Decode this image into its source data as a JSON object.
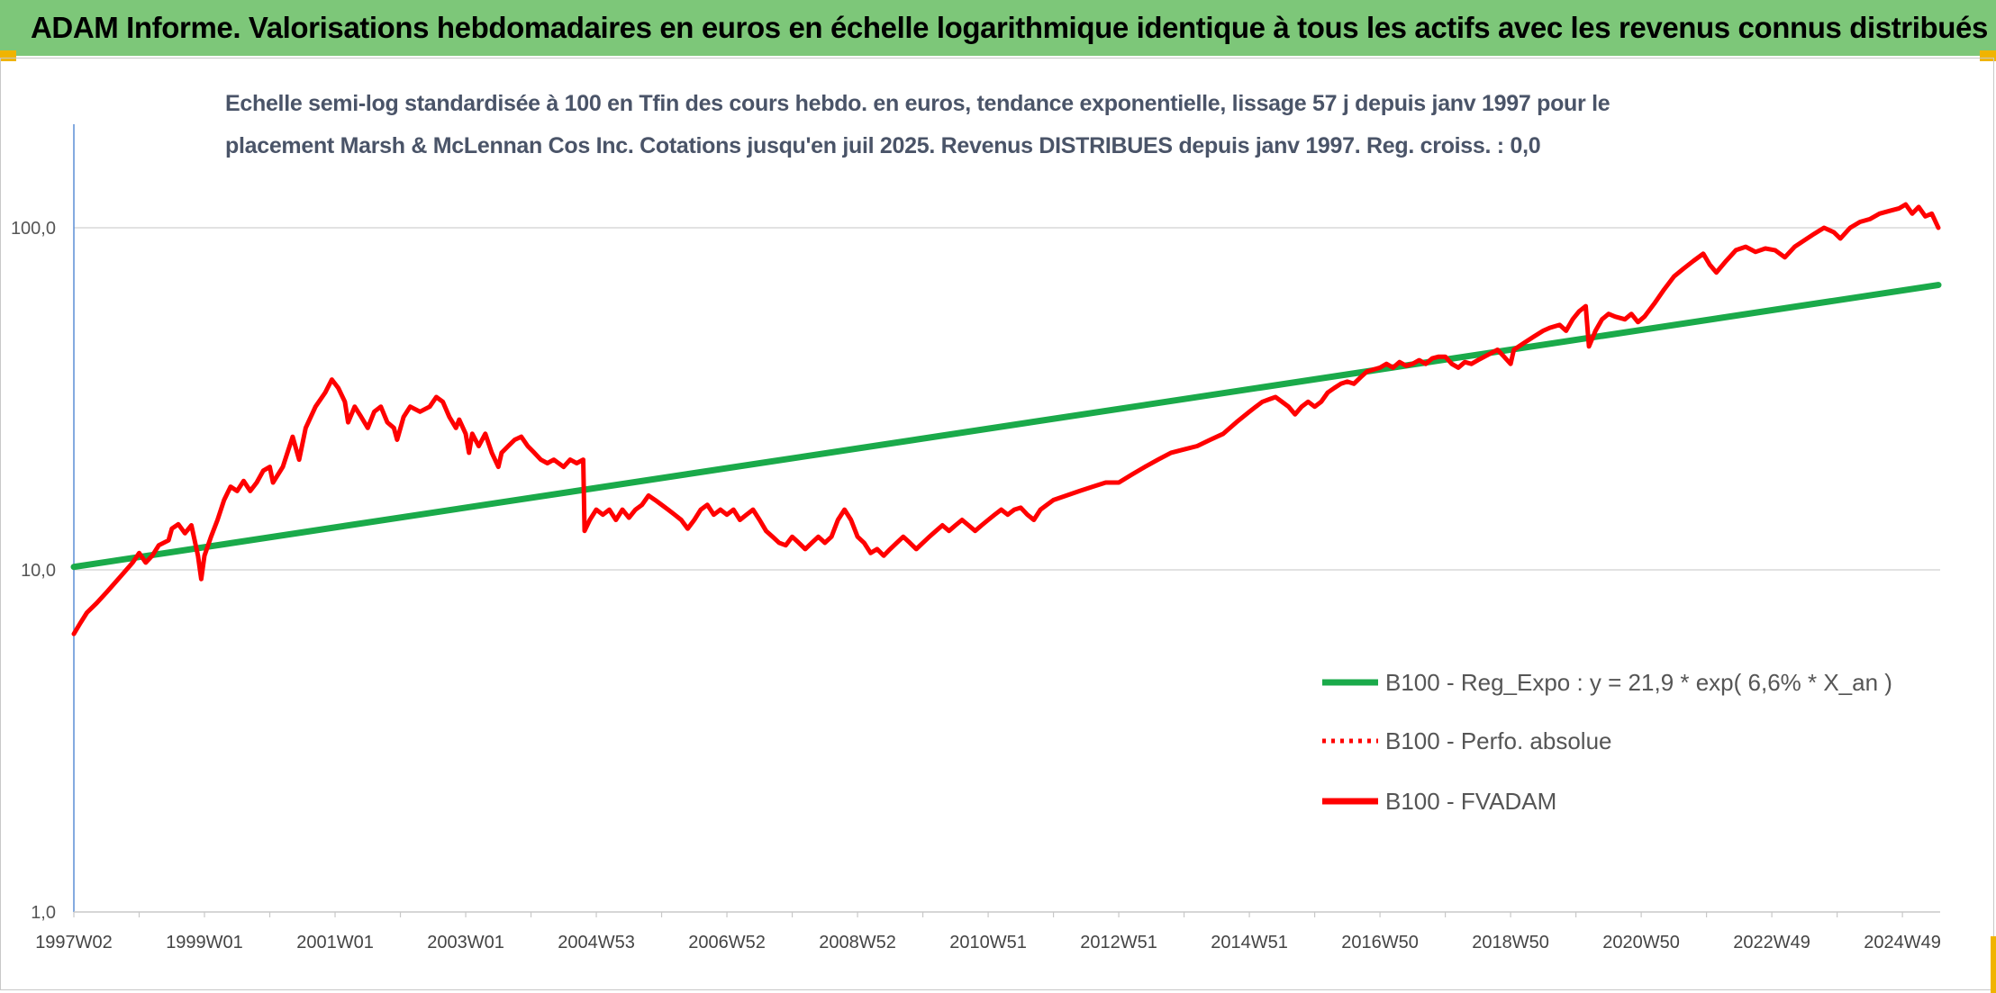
{
  "header": {
    "title": "ADAM Informe. Valorisations hebdomadaires en euros en échelle logarithmique identique à tous les actifs avec les revenus connus distribués"
  },
  "colors": {
    "header_bg": "#7dc779",
    "trend": "#1aaa4a",
    "fvadam": "#ff0000",
    "perfo": "#ff0000"
  },
  "chart_data": {
    "type": "line",
    "title": "Echelle semi-log standardisée à 100 en Tfin des cours hebdo. en euros, tendance exponentielle, lissage 57 j depuis janv 1997 pour le placement Marsh & McLennan Cos Inc. Cotations jusqu'en juil 2025. Revenus DISTRIBUES depuis janv 1997. Reg. croiss. : 0,0",
    "title_lines": [
      "Echelle semi-log standardisée à 100 en Tfin des cours hebdo. en euros, tendance exponentielle, lissage 57 j depuis janv 1997 pour le",
      "placement Marsh & McLennan Cos Inc. Cotations jusqu'en juil 2025. Revenus DISTRIBUES depuis janv 1997. Reg. croiss. : 0,0"
    ],
    "y_scale": "log",
    "ylim": [
      1,
      200
    ],
    "x_range": [
      1997.0,
      2025.55
    ],
    "y_ticks": [
      {
        "value": 1,
        "label": "1,0"
      },
      {
        "value": 10,
        "label": "10,0"
      },
      {
        "value": 100,
        "label": "100,0"
      }
    ],
    "x_ticks": [
      {
        "x": 1997.0,
        "label": "1997W02"
      },
      {
        "x": 1999.0,
        "label": "1999W01"
      },
      {
        "x": 2001.0,
        "label": "2001W01"
      },
      {
        "x": 2003.0,
        "label": "2003W01"
      },
      {
        "x": 2005.0,
        "label": "2004W53"
      },
      {
        "x": 2007.0,
        "label": "2006W52"
      },
      {
        "x": 2009.0,
        "label": "2008W52"
      },
      {
        "x": 2011.0,
        "label": "2010W51"
      },
      {
        "x": 2013.0,
        "label": "2012W51"
      },
      {
        "x": 2015.0,
        "label": "2014W51"
      },
      {
        "x": 2017.0,
        "label": "2016W50"
      },
      {
        "x": 2019.0,
        "label": "2018W50"
      },
      {
        "x": 2021.0,
        "label": "2020W50"
      },
      {
        "x": 2023.0,
        "label": "2022W49"
      },
      {
        "x": 2025.0,
        "label": "2024W49"
      }
    ],
    "grid": "horizontal",
    "legend_position": "right-middle",
    "series": [
      {
        "name": "B100 - Reg_Expo : y = 21,9 * exp( 6,6% *  X_an )",
        "style": "solid",
        "color": "#1aaa4a",
        "points": [
          [
            1997.0,
            10.2
          ],
          [
            2025.55,
            68.0
          ]
        ]
      },
      {
        "name": "B100 - Perfo. absolue",
        "style": "dotted",
        "color": "#ff0000",
        "points": []
      },
      {
        "name": "B100 - FVADAM",
        "style": "solid",
        "color": "#ff0000",
        "points": [
          [
            1997.0,
            6.5
          ],
          [
            1997.1,
            7.0
          ],
          [
            1997.2,
            7.5
          ],
          [
            1997.35,
            8.0
          ],
          [
            1997.5,
            8.6
          ],
          [
            1997.7,
            9.5
          ],
          [
            1997.9,
            10.5
          ],
          [
            1998.0,
            11.2
          ],
          [
            1998.1,
            10.5
          ],
          [
            1998.2,
            11.0
          ],
          [
            1998.3,
            11.8
          ],
          [
            1998.45,
            12.2
          ],
          [
            1998.5,
            13.2
          ],
          [
            1998.6,
            13.6
          ],
          [
            1998.7,
            12.8
          ],
          [
            1998.8,
            13.5
          ],
          [
            1998.9,
            11.0
          ],
          [
            1998.95,
            9.4
          ],
          [
            1999.0,
            11.0
          ],
          [
            1999.1,
            12.5
          ],
          [
            1999.2,
            14.0
          ],
          [
            1999.3,
            16.0
          ],
          [
            1999.4,
            17.5
          ],
          [
            1999.5,
            17.0
          ],
          [
            1999.6,
            18.2
          ],
          [
            1999.7,
            17.0
          ],
          [
            1999.8,
            18.0
          ],
          [
            1999.9,
            19.5
          ],
          [
            2000.0,
            20.0
          ],
          [
            2000.05,
            18.0
          ],
          [
            2000.2,
            20.0
          ],
          [
            2000.35,
            24.5
          ],
          [
            2000.45,
            21.0
          ],
          [
            2000.55,
            26.0
          ],
          [
            2000.7,
            30.0
          ],
          [
            2000.85,
            33.0
          ],
          [
            2000.95,
            36.0
          ],
          [
            2001.05,
            34.0
          ],
          [
            2001.15,
            31.0
          ],
          [
            2001.2,
            27.0
          ],
          [
            2001.3,
            30.0
          ],
          [
            2001.4,
            28.0
          ],
          [
            2001.5,
            26.0
          ],
          [
            2001.6,
            29.0
          ],
          [
            2001.7,
            30.0
          ],
          [
            2001.8,
            27.0
          ],
          [
            2001.9,
            26.0
          ],
          [
            2001.95,
            24.0
          ],
          [
            2002.05,
            28.0
          ],
          [
            2002.15,
            30.0
          ],
          [
            2002.3,
            29.0
          ],
          [
            2002.45,
            30.0
          ],
          [
            2002.55,
            32.0
          ],
          [
            2002.65,
            31.0
          ],
          [
            2002.75,
            28.0
          ],
          [
            2002.85,
            26.0
          ],
          [
            2002.9,
            27.5
          ],
          [
            2003.0,
            25.0
          ],
          [
            2003.05,
            22.0
          ],
          [
            2003.1,
            25.0
          ],
          [
            2003.2,
            23.0
          ],
          [
            2003.3,
            25.0
          ],
          [
            2003.4,
            22.0
          ],
          [
            2003.5,
            20.0
          ],
          [
            2003.55,
            22.0
          ],
          [
            2003.65,
            23.0
          ],
          [
            2003.75,
            24.0
          ],
          [
            2003.85,
            24.5
          ],
          [
            2003.95,
            23.0
          ],
          [
            2004.05,
            22.0
          ],
          [
            2004.15,
            21.0
          ],
          [
            2004.25,
            20.5
          ],
          [
            2004.35,
            21.0
          ],
          [
            2004.5,
            20.0
          ],
          [
            2004.6,
            21.0
          ],
          [
            2004.7,
            20.5
          ],
          [
            2004.8,
            21.0
          ],
          [
            2004.82,
            13.0
          ],
          [
            2004.9,
            14.0
          ],
          [
            2005.0,
            15.0
          ],
          [
            2005.1,
            14.5
          ],
          [
            2005.2,
            15.0
          ],
          [
            2005.3,
            14.0
          ],
          [
            2005.4,
            15.0
          ],
          [
            2005.5,
            14.2
          ],
          [
            2005.6,
            15.0
          ],
          [
            2005.7,
            15.5
          ],
          [
            2005.8,
            16.5
          ],
          [
            2005.9,
            16.0
          ],
          [
            2006.0,
            15.5
          ],
          [
            2006.1,
            15.0
          ],
          [
            2006.2,
            14.5
          ],
          [
            2006.3,
            14.0
          ],
          [
            2006.4,
            13.2
          ],
          [
            2006.5,
            14.0
          ],
          [
            2006.6,
            15.0
          ],
          [
            2006.7,
            15.5
          ],
          [
            2006.8,
            14.5
          ],
          [
            2006.9,
            15.0
          ],
          [
            2007.0,
            14.5
          ],
          [
            2007.1,
            15.0
          ],
          [
            2007.2,
            14.0
          ],
          [
            2007.3,
            14.5
          ],
          [
            2007.4,
            15.0
          ],
          [
            2007.5,
            14.0
          ],
          [
            2007.6,
            13.0
          ],
          [
            2007.7,
            12.5
          ],
          [
            2007.8,
            12.0
          ],
          [
            2007.9,
            11.8
          ],
          [
            2008.0,
            12.5
          ],
          [
            2008.1,
            12.0
          ],
          [
            2008.2,
            11.5
          ],
          [
            2008.3,
            12.0
          ],
          [
            2008.4,
            12.5
          ],
          [
            2008.5,
            12.0
          ],
          [
            2008.6,
            12.5
          ],
          [
            2008.7,
            14.0
          ],
          [
            2008.8,
            15.0
          ],
          [
            2008.9,
            14.0
          ],
          [
            2009.0,
            12.5
          ],
          [
            2009.1,
            12.0
          ],
          [
            2009.2,
            11.2
          ],
          [
            2009.3,
            11.5
          ],
          [
            2009.4,
            11.0
          ],
          [
            2009.5,
            11.5
          ],
          [
            2009.6,
            12.0
          ],
          [
            2009.7,
            12.5
          ],
          [
            2009.8,
            12.0
          ],
          [
            2009.9,
            11.5
          ],
          [
            2010.0,
            12.0
          ],
          [
            2010.1,
            12.5
          ],
          [
            2010.2,
            13.0
          ],
          [
            2010.3,
            13.5
          ],
          [
            2010.4,
            13.0
          ],
          [
            2010.5,
            13.5
          ],
          [
            2010.6,
            14.0
          ],
          [
            2010.7,
            13.5
          ],
          [
            2010.8,
            13.0
          ],
          [
            2010.9,
            13.5
          ],
          [
            2011.0,
            14.0
          ],
          [
            2011.1,
            14.5
          ],
          [
            2011.2,
            15.0
          ],
          [
            2011.3,
            14.5
          ],
          [
            2011.4,
            15.0
          ],
          [
            2011.5,
            15.2
          ],
          [
            2011.6,
            14.5
          ],
          [
            2011.7,
            14.0
          ],
          [
            2011.8,
            15.0
          ],
          [
            2011.9,
            15.5
          ],
          [
            2012.0,
            16.0
          ],
          [
            2012.2,
            16.5
          ],
          [
            2012.4,
            17.0
          ],
          [
            2012.6,
            17.5
          ],
          [
            2012.8,
            18.0
          ],
          [
            2013.0,
            18.0
          ],
          [
            2013.2,
            19.0
          ],
          [
            2013.4,
            20.0
          ],
          [
            2013.6,
            21.0
          ],
          [
            2013.8,
            22.0
          ],
          [
            2014.0,
            22.5
          ],
          [
            2014.2,
            23.0
          ],
          [
            2014.4,
            24.0
          ],
          [
            2014.6,
            25.0
          ],
          [
            2014.8,
            27.0
          ],
          [
            2015.0,
            29.0
          ],
          [
            2015.1,
            30.0
          ],
          [
            2015.2,
            31.0
          ],
          [
            2015.3,
            31.5
          ],
          [
            2015.4,
            32.0
          ],
          [
            2015.5,
            31.0
          ],
          [
            2015.6,
            30.0
          ],
          [
            2015.7,
            28.5
          ],
          [
            2015.8,
            30.0
          ],
          [
            2015.9,
            31.0
          ],
          [
            2016.0,
            30.0
          ],
          [
            2016.1,
            31.0
          ],
          [
            2016.2,
            33.0
          ],
          [
            2016.3,
            34.0
          ],
          [
            2016.4,
            35.0
          ],
          [
            2016.5,
            35.5
          ],
          [
            2016.6,
            35.0
          ],
          [
            2016.7,
            36.5
          ],
          [
            2016.8,
            38.0
          ],
          [
            2016.9,
            38.5
          ],
          [
            2017.0,
            39.0
          ],
          [
            2017.1,
            40.0
          ],
          [
            2017.2,
            39.0
          ],
          [
            2017.3,
            40.5
          ],
          [
            2017.4,
            39.5
          ],
          [
            2017.5,
            40.0
          ],
          [
            2017.6,
            41.0
          ],
          [
            2017.7,
            40.0
          ],
          [
            2017.8,
            41.5
          ],
          [
            2017.9,
            42.0
          ],
          [
            2018.0,
            42.0
          ],
          [
            2018.1,
            40.0
          ],
          [
            2018.2,
            39.0
          ],
          [
            2018.3,
            40.5
          ],
          [
            2018.4,
            40.0
          ],
          [
            2018.5,
            41.0
          ],
          [
            2018.6,
            42.0
          ],
          [
            2018.7,
            43.0
          ],
          [
            2018.8,
            44.0
          ],
          [
            2018.9,
            42.0
          ],
          [
            2019.0,
            40.0
          ],
          [
            2019.05,
            44.0
          ],
          [
            2019.2,
            46.0
          ],
          [
            2019.35,
            48.0
          ],
          [
            2019.5,
            50.0
          ],
          [
            2019.6,
            51.0
          ],
          [
            2019.75,
            52.0
          ],
          [
            2019.85,
            50.0
          ],
          [
            2019.95,
            54.0
          ],
          [
            2020.05,
            57.0
          ],
          [
            2020.15,
            59.0
          ],
          [
            2020.2,
            45.0
          ],
          [
            2020.3,
            50.0
          ],
          [
            2020.4,
            54.0
          ],
          [
            2020.5,
            56.0
          ],
          [
            2020.6,
            55.0
          ],
          [
            2020.75,
            54.0
          ],
          [
            2020.85,
            56.0
          ],
          [
            2020.95,
            53.0
          ],
          [
            2021.05,
            55.0
          ],
          [
            2021.2,
            60.0
          ],
          [
            2021.35,
            66.0
          ],
          [
            2021.5,
            72.0
          ],
          [
            2021.65,
            76.0
          ],
          [
            2021.8,
            80.0
          ],
          [
            2021.95,
            84.0
          ],
          [
            2022.05,
            78.0
          ],
          [
            2022.15,
            74.0
          ],
          [
            2022.3,
            80.0
          ],
          [
            2022.45,
            86.0
          ],
          [
            2022.6,
            88.0
          ],
          [
            2022.75,
            85.0
          ],
          [
            2022.9,
            87.0
          ],
          [
            2023.05,
            86.0
          ],
          [
            2023.2,
            82.0
          ],
          [
            2023.35,
            88.0
          ],
          [
            2023.5,
            92.0
          ],
          [
            2023.65,
            96.0
          ],
          [
            2023.8,
            100.0
          ],
          [
            2023.95,
            97.0
          ],
          [
            2024.05,
            93.0
          ],
          [
            2024.2,
            100.0
          ],
          [
            2024.35,
            104.0
          ],
          [
            2024.5,
            106.0
          ],
          [
            2024.65,
            110.0
          ],
          [
            2024.8,
            112.0
          ],
          [
            2024.95,
            114.0
          ],
          [
            2025.05,
            117.0
          ],
          [
            2025.15,
            110.0
          ],
          [
            2025.25,
            115.0
          ],
          [
            2025.35,
            108.0
          ],
          [
            2025.45,
            110.0
          ],
          [
            2025.55,
            100.0
          ]
        ]
      }
    ]
  }
}
